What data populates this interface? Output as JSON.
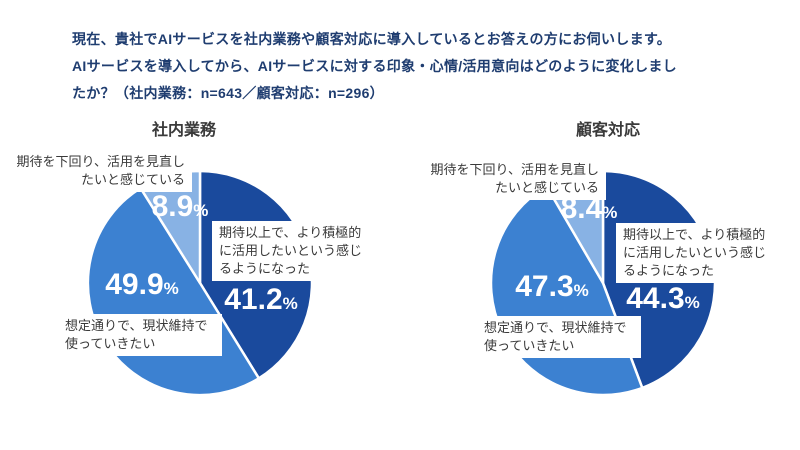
{
  "header": {
    "lines": [
      "現在、貴社でAIサービスを社内業務や顧客対応に導入しているとお答えの方にお伺いします。",
      "AIサービスを導入してから、AIサービスに対する印象・心情/活用意向はどのように変化しまし",
      "たか？（社内業務：n=643／顧客対応：n=296）"
    ],
    "text_color": "#1f3d70"
  },
  "ui": {
    "percent_sign": "%"
  },
  "colors": {
    "positive_dark_blue": "#1a4a9d",
    "neutral_medium_blue": "#3c81d1",
    "negative_light_blue": "#88b2e4",
    "slice_divider": "#ffffff",
    "value_text": "#ffffff",
    "callout_text": "#3a3a3a"
  },
  "chart_data": [
    {
      "type": "pie",
      "title": "社内業務",
      "n": 643,
      "unit": "%",
      "start_angle_deg": 0,
      "direction": "clockwise",
      "slices": [
        {
          "label": "期待以上で、より積極的に活用したいという感じるようになった",
          "value": 41.2,
          "pct_label": "41.2",
          "color": "#1a4a9d"
        },
        {
          "label": "想定通りで、現状維持で使っていきたい",
          "value": 49.9,
          "pct_label": "49.9",
          "color": "#3c81d1"
        },
        {
          "label": "期待を下回り、活用を見直したいと感じている",
          "value": 8.9,
          "pct_label": "8.9",
          "color": "#88b2e4"
        }
      ]
    },
    {
      "type": "pie",
      "title": "顧客対応",
      "n": 296,
      "unit": "%",
      "start_angle_deg": 0,
      "direction": "clockwise",
      "slices": [
        {
          "label": "期待以上で、より積極的に活用したいという感じるようになった",
          "value": 44.3,
          "pct_label": "44.3",
          "color": "#1a4a9d"
        },
        {
          "label": "想定通りで、現状維持で使っていきたい",
          "value": 47.3,
          "pct_label": "47.3",
          "color": "#3c81d1"
        },
        {
          "label": "期待を下回り、活用を見直したいと感じている",
          "value": 8.4,
          "pct_label": "8.4",
          "color": "#88b2e4"
        }
      ]
    }
  ]
}
